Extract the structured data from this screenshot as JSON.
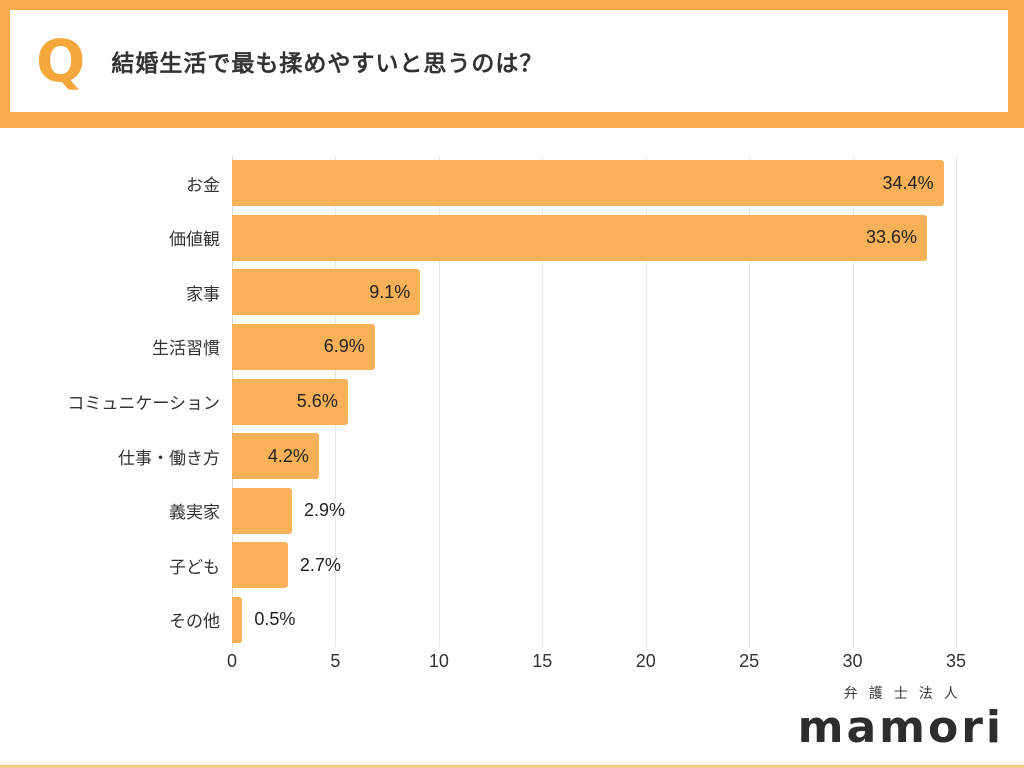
{
  "header": {
    "q_mark": "Q",
    "title": "結婚生活で最も揉めやすいと思うのは？"
  },
  "chart_data": {
    "type": "bar",
    "orientation": "horizontal",
    "title": "結婚生活で最も揉めやすいと思うのは？",
    "categories": [
      "お金",
      "価値観",
      "家事",
      "生活習慣",
      "コミュニケーション",
      "仕事・働き方",
      "義実家",
      "子ども",
      "その他"
    ],
    "values": [
      34.4,
      33.6,
      9.1,
      6.9,
      5.6,
      4.2,
      2.9,
      2.7,
      0.5
    ],
    "value_labels": [
      "34.4%",
      "33.6%",
      "9.1%",
      "6.9%",
      "5.6%",
      "4.2%",
      "2.9%",
      "2.7%",
      "0.5%"
    ],
    "xlim": [
      0,
      35
    ],
    "xticks": [
      0,
      5,
      10,
      15,
      20,
      25,
      30,
      35
    ],
    "grid": true,
    "legend": false,
    "bar_color": "#F8B158",
    "inside_label_threshold": 4.0
  },
  "footer": {
    "company": "弁護士法人",
    "brand": "mamori"
  },
  "colors": {
    "accent_orange": "#F9AC4B",
    "bar_orange": "#F8B158",
    "text_dark": "#333333",
    "gridline": "#E6E6E6"
  }
}
